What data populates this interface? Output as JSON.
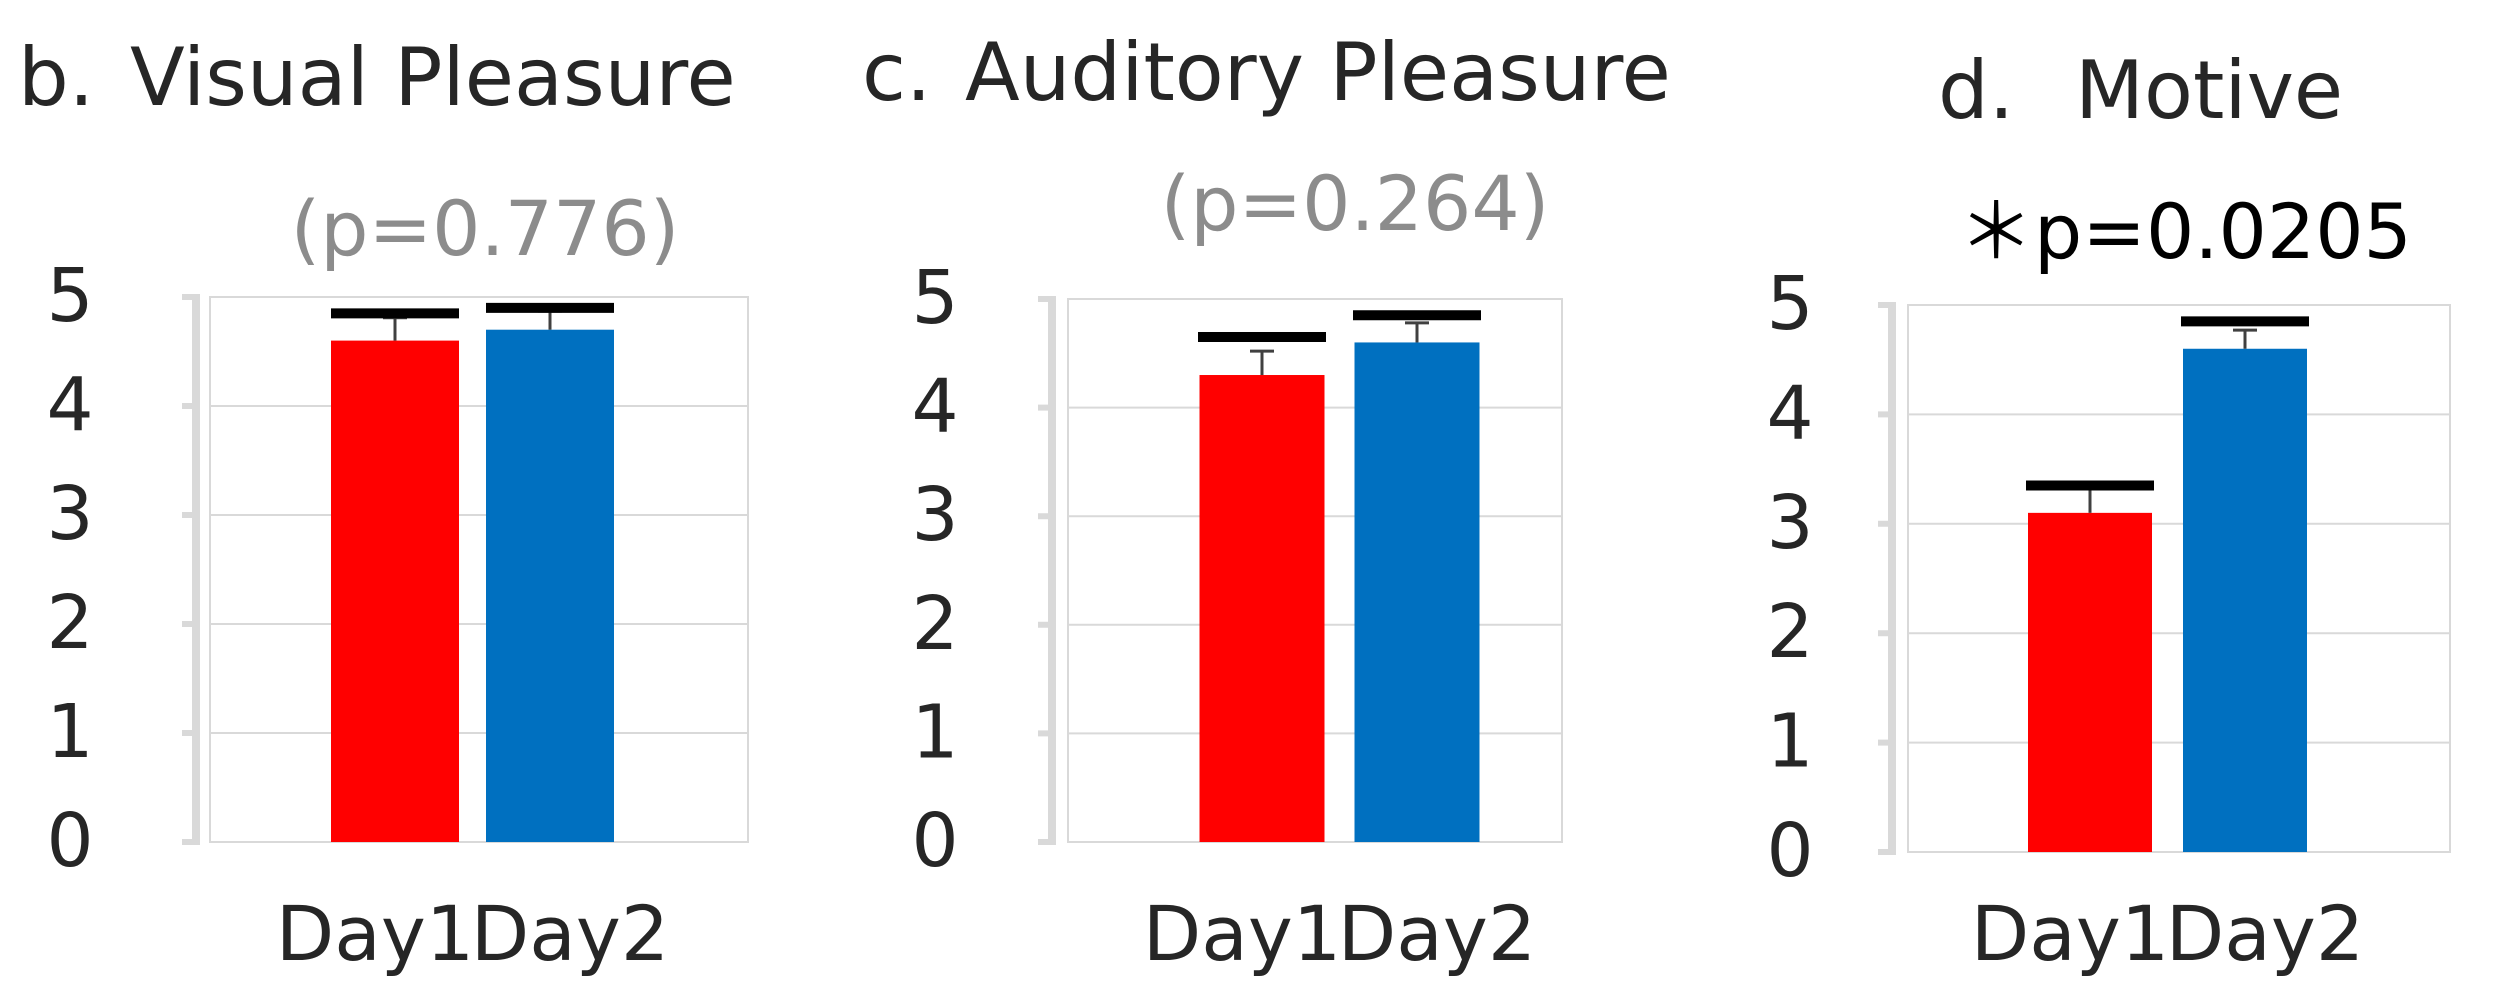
{
  "chart_data": [
    {
      "type": "bar",
      "panel_label": "b.",
      "title": "Visual Pleasure",
      "subtitle": "(p=0.776)",
      "xlabel": "",
      "ylabel": "",
      "categories": [
        "Day1",
        "Day2"
      ],
      "values": [
        4.6,
        4.7
      ],
      "error": [
        0.21,
        0.17
      ],
      "significance_line": [
        4.85,
        4.9
      ],
      "bar_colors": [
        "#ff0000",
        "#0070c0"
      ],
      "ylim": [
        0,
        5
      ],
      "yticks": [
        "0",
        "1",
        "2",
        "3",
        "4",
        "5"
      ],
      "grid": true,
      "subtitle_color": "#8c8c8c"
    },
    {
      "type": "bar",
      "panel_label": "c.",
      "title": "Auditory Pleasure",
      "subtitle": "(p=0.264)",
      "xlabel": "",
      "ylabel": "",
      "categories": [
        "Day1",
        "Day2"
      ],
      "values": [
        4.3,
        4.6
      ],
      "error": [
        0.22,
        0.18
      ],
      "significance_line": [
        4.65,
        4.85
      ],
      "bar_colors": [
        "#ff0000",
        "#0070c0"
      ],
      "ylim": [
        0,
        5
      ],
      "yticks": [
        "0",
        "1",
        "2",
        "3",
        "4",
        "5"
      ],
      "grid": true,
      "subtitle_color": "#8c8c8c"
    },
    {
      "type": "bar",
      "panel_label": "d.",
      "title": "Motive",
      "subtitle": "＊p=0.0205",
      "xlabel": "",
      "ylabel": "",
      "categories": [
        "Day1",
        "Day2"
      ],
      "values": [
        3.1,
        4.6
      ],
      "error": [
        0.22,
        0.17
      ],
      "significance_line": [
        3.35,
        4.85
      ],
      "bar_colors": [
        "#ff0000",
        "#0070c0"
      ],
      "ylim": [
        0,
        5
      ],
      "yticks": [
        "0",
        "1",
        "2",
        "3",
        "4",
        "5"
      ],
      "grid": true,
      "subtitle_color": "#000000"
    }
  ]
}
